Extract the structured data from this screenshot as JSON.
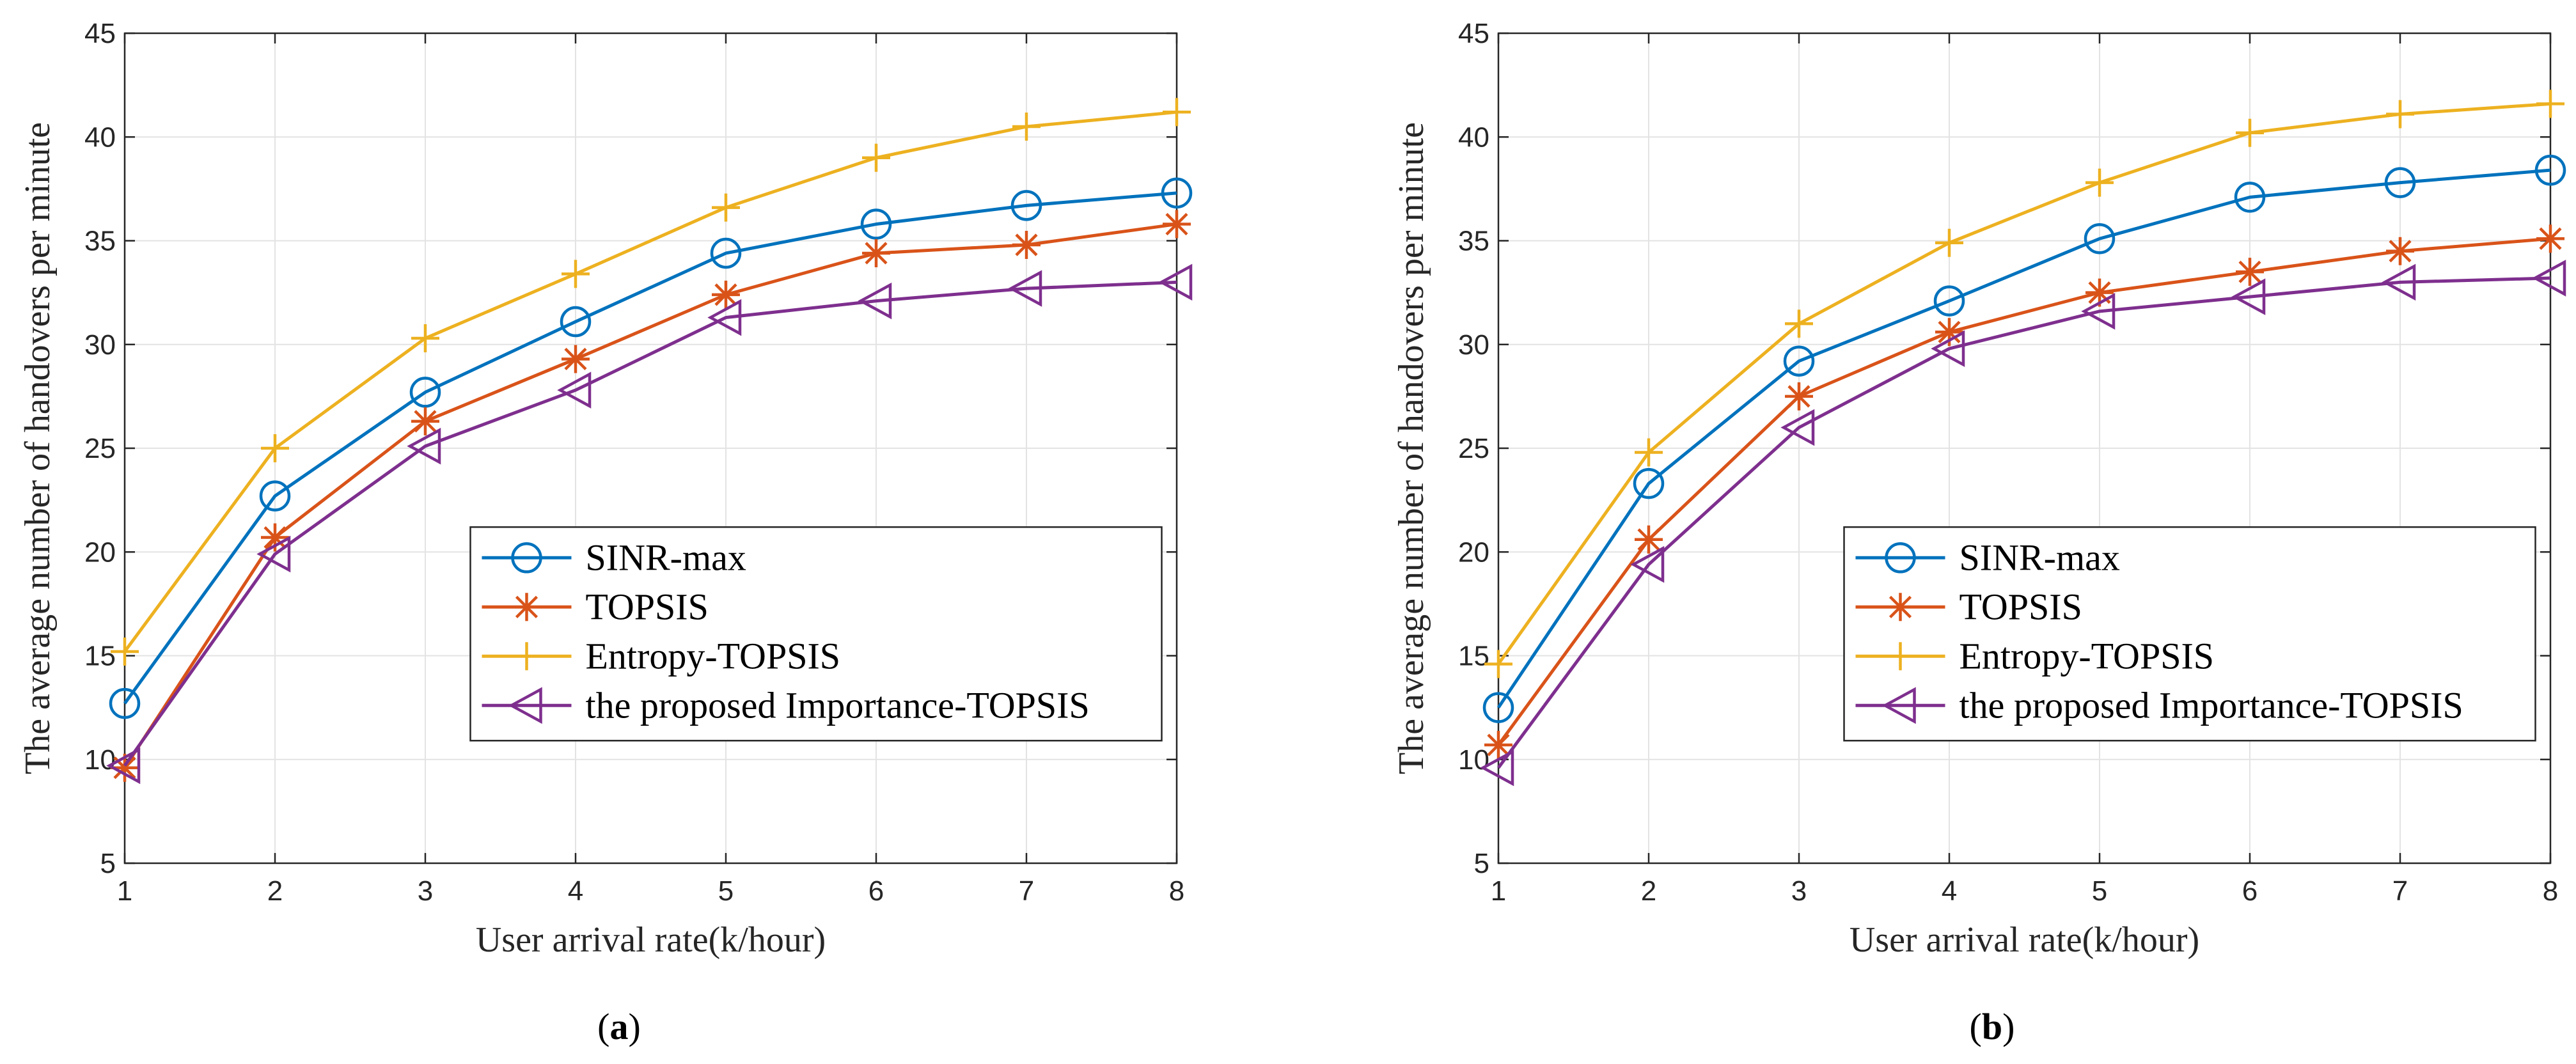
{
  "chart_data": [
    {
      "type": "line",
      "caption": "a",
      "xlabel": "User arrival rate(k/hour)",
      "ylabel": "The average number of handovers per minute",
      "xlim": [
        1,
        8
      ],
      "ylim": [
        5,
        45
      ],
      "x_ticks": [
        1,
        2,
        3,
        4,
        5,
        6,
        7,
        8
      ],
      "y_ticks": [
        5,
        10,
        15,
        20,
        25,
        30,
        35,
        40,
        45
      ],
      "grid": true,
      "legend_position": "bottom-right",
      "x": [
        1,
        2,
        3,
        4,
        5,
        6,
        7,
        8
      ],
      "series": [
        {
          "name": "SINR-max",
          "color": "#0072BD",
          "marker": "circle",
          "values": [
            12.7,
            22.7,
            27.7,
            31.1,
            34.4,
            35.8,
            36.7,
            37.3
          ]
        },
        {
          "name": "TOPSIS",
          "color": "#D95319",
          "marker": "asterisk",
          "values": [
            9.6,
            20.7,
            26.3,
            29.3,
            32.4,
            34.4,
            34.8,
            35.8
          ]
        },
        {
          "name": "Entropy-TOPSIS",
          "color": "#EDB120",
          "marker": "plus",
          "values": [
            15.2,
            25.0,
            30.3,
            33.4,
            36.6,
            39.0,
            40.5,
            41.2
          ]
        },
        {
          "name": "the proposed Importance-TOPSIS",
          "color": "#7E2F8E",
          "marker": "triangle-left",
          "values": [
            9.7,
            19.9,
            25.1,
            27.8,
            31.3,
            32.1,
            32.7,
            33.0
          ]
        }
      ]
    },
    {
      "type": "line",
      "caption": "b",
      "xlabel": "User arrival rate(k/hour)",
      "ylabel": "The average number of handovers per minute",
      "xlim": [
        1,
        8
      ],
      "ylim": [
        5,
        45
      ],
      "x_ticks": [
        1,
        2,
        3,
        4,
        5,
        6,
        7,
        8
      ],
      "y_ticks": [
        5,
        10,
        15,
        20,
        25,
        30,
        35,
        40,
        45
      ],
      "grid": true,
      "legend_position": "bottom-right",
      "x": [
        1,
        2,
        3,
        4,
        5,
        6,
        7,
        8
      ],
      "series": [
        {
          "name": "SINR-max",
          "color": "#0072BD",
          "marker": "circle",
          "values": [
            12.5,
            23.3,
            29.2,
            32.1,
            35.1,
            37.1,
            37.8,
            38.4
          ]
        },
        {
          "name": "TOPSIS",
          "color": "#D95319",
          "marker": "asterisk",
          "values": [
            10.7,
            20.6,
            27.5,
            30.6,
            32.5,
            33.5,
            34.5,
            35.1
          ]
        },
        {
          "name": "Entropy-TOPSIS",
          "color": "#EDB120",
          "marker": "plus",
          "values": [
            14.6,
            24.8,
            31.0,
            34.9,
            37.8,
            40.2,
            41.1,
            41.6
          ]
        },
        {
          "name": "the proposed Importance-TOPSIS",
          "color": "#7E2F8E",
          "marker": "triangle-left",
          "values": [
            9.6,
            19.4,
            26.0,
            29.8,
            31.6,
            32.3,
            33.0,
            33.2
          ]
        }
      ]
    }
  ]
}
